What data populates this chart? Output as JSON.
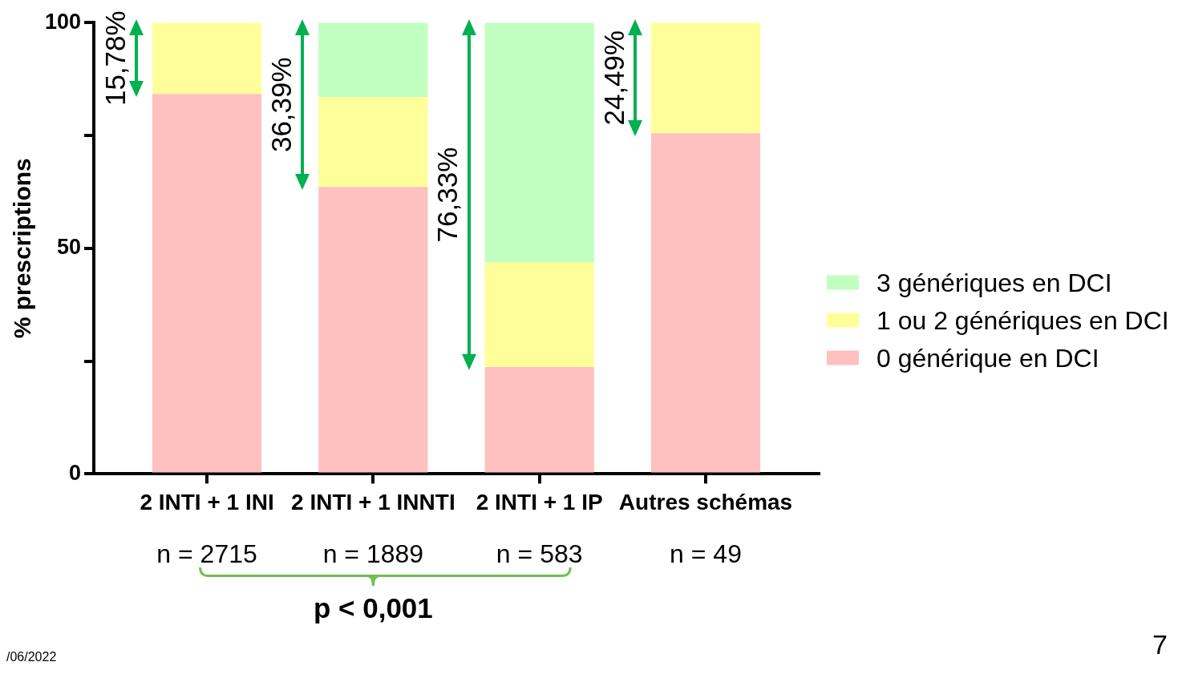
{
  "chart_data": {
    "type": "bar",
    "stacked": true,
    "ylabel": "% prescriptions",
    "categories": [
      "2 INTI + 1 INI",
      "2 INTI + 1 INNTI",
      "2 INTI + 1 IP",
      "Autres schémas"
    ],
    "series": [
      {
        "name": "0 générique en DCI",
        "color": "#ffc0c0",
        "values": [
          84.2,
          63.6,
          23.7,
          75.5
        ]
      },
      {
        "name": "1 ou 2 génériques en DCI",
        "color": "#ffff99",
        "values": [
          15.8,
          19.9,
          23.2,
          24.5
        ]
      },
      {
        "name": "3 génériques en DCI",
        "color": "#c0ffc0",
        "values": [
          0,
          16.5,
          53.1,
          0
        ]
      }
    ],
    "ylim": [
      0,
      100
    ],
    "yticks": [
      0,
      {
        "value": 25,
        "label": null
      },
      50,
      {
        "value": 75,
        "label": null
      },
      100
    ],
    "legend": "right",
    "annotations": [
      "15,78%",
      "36,39%",
      "76,33%",
      "24,49%",
      "n = 2715",
      "n = 1889",
      "n = 583",
      "n = 49",
      "p < 0,001",
      "/06/2022",
      "7"
    ]
  }
}
